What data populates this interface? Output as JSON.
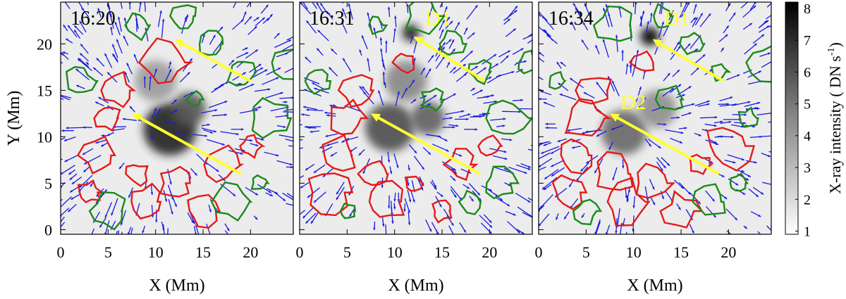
{
  "figure": {
    "y_axis_label": "Y (Mm)",
    "colorbar_label": "X-ray intensity ( DN s",
    "colorbar_label_exponent": "-1",
    "colorbar_label_close": ")",
    "colorbar_ticks": [
      "8",
      "7",
      "6",
      "5",
      "4",
      "3",
      "2",
      "1"
    ],
    "colorbar_range": [
      0.9,
      8.2
    ],
    "colormap": "grayscale (white = low, black = high)",
    "colors": {
      "positive_contour": "#e21b1b",
      "negative_contour": "#1a8a1a",
      "velocity_vectors": "#1a1adf",
      "annotation_arrows": "#ffff33"
    }
  },
  "chart_data": [
    {
      "type": "heatmap",
      "panel": "left",
      "time_label": "16:20",
      "xlabel": "X (Mm)",
      "ylabel": "Y (Mm)",
      "xlim": [
        0,
        24.5
      ],
      "ylim": [
        -0.5,
        24.5
      ],
      "x_ticks": [
        "0",
        "5",
        "10",
        "15",
        "20"
      ],
      "y_ticks": [
        "0",
        "5",
        "10",
        "15",
        "20"
      ],
      "blobs": [
        {
          "x": 11.5,
          "y": 10.8,
          "sigma": 2.8,
          "peak": 7.2
        },
        {
          "x": 13.5,
          "y": 13.0,
          "sigma": 1.8,
          "peak": 5.5
        },
        {
          "x": 10.0,
          "y": 16.0,
          "sigma": 2.2,
          "peak": 3.4
        }
      ],
      "arrows": [
        {
          "from": [
            20.0,
            16.0
          ],
          "to": [
            12.0,
            20.5
          ]
        },
        {
          "from": [
            19.0,
            6.0
          ],
          "to": [
            7.5,
            12.5
          ]
        }
      ],
      "labels": []
    },
    {
      "type": "heatmap",
      "panel": "middle",
      "time_label": "16:31",
      "xlabel": "X (Mm)",
      "xlim": [
        0,
        24.5
      ],
      "ylim": [
        -0.5,
        24.5
      ],
      "x_ticks": [
        "0",
        "5",
        "10",
        "15",
        "20"
      ],
      "blobs": [
        {
          "x": 9.5,
          "y": 11.0,
          "sigma": 2.6,
          "peak": 5.8
        },
        {
          "x": 13.5,
          "y": 12.0,
          "sigma": 1.8,
          "peak": 5.2
        },
        {
          "x": 11.2,
          "y": 16.0,
          "sigma": 2.2,
          "peak": 4.0
        },
        {
          "x": 11.7,
          "y": 21.2,
          "sigma": 0.9,
          "peak": 7.6
        }
      ],
      "arrows": [
        {
          "from": [
            19.5,
            16.0
          ],
          "to": [
            12.0,
            20.8
          ]
        },
        {
          "from": [
            19.0,
            6.0
          ],
          "to": [
            7.5,
            12.5
          ]
        }
      ],
      "labels": [
        {
          "text": "D1",
          "x": 13.2,
          "y": 22.0
        }
      ]
    },
    {
      "type": "heatmap",
      "panel": "right",
      "time_label": "16:34",
      "xlabel": "X (Mm)",
      "xlim": [
        0,
        24.5
      ],
      "ylim": [
        -0.5,
        24.5
      ],
      "x_ticks": [
        "0",
        "5",
        "10",
        "15",
        "20"
      ],
      "blobs": [
        {
          "x": 9.0,
          "y": 10.5,
          "sigma": 2.4,
          "peak": 5.0
        },
        {
          "x": 11.7,
          "y": 20.8,
          "sigma": 1.0,
          "peak": 8.0
        },
        {
          "x": 12.5,
          "y": 13.0,
          "sigma": 2.0,
          "peak": 3.8
        }
      ],
      "arrows": [
        {
          "from": [
            19.5,
            16.0
          ],
          "to": [
            12.0,
            20.5
          ]
        },
        {
          "from": [
            19.0,
            6.0
          ],
          "to": [
            7.5,
            12.5
          ]
        }
      ],
      "labels": [
        {
          "text": "D1",
          "x": 13.2,
          "y": 22.0
        },
        {
          "text": "D2",
          "x": 8.6,
          "y": 13.0
        }
      ]
    }
  ]
}
